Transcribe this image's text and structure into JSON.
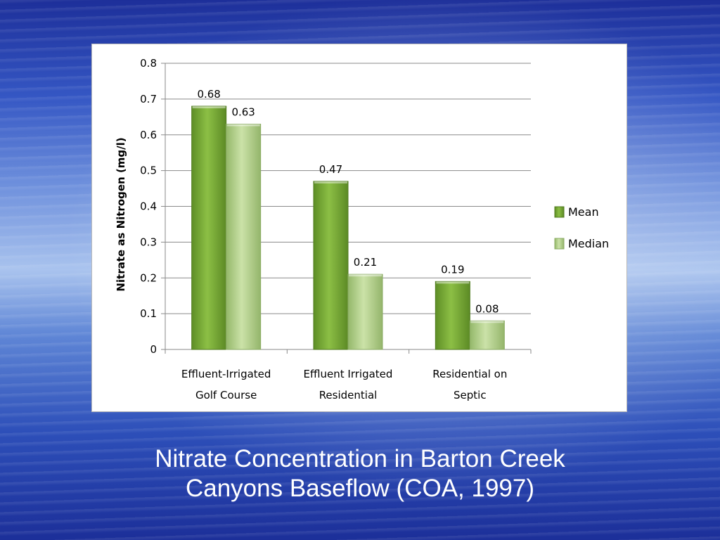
{
  "slide_title": {
    "line1": "Nitrate Concentration in Barton Creek",
    "line2": "Canyons Baseflow (COA, 1997)"
  },
  "chart_data": {
    "type": "bar",
    "categories": [
      [
        "Effluent-Irrigated",
        "Golf Course"
      ],
      [
        "Effluent Irrigated",
        "Residential"
      ],
      [
        "Residential  on",
        "Septic"
      ]
    ],
    "series": [
      {
        "name": "Mean",
        "values": [
          0.68,
          0.47,
          0.19
        ],
        "labels": [
          "0.68",
          "0.47",
          "0.19"
        ],
        "color": "#7fae3a"
      },
      {
        "name": "Median",
        "values": [
          0.63,
          0.21,
          0.08
        ],
        "labels": [
          "0.63",
          "0.21",
          "0.08"
        ],
        "color": "#b7d48c"
      }
    ],
    "ylabel": "Nitrate as Nitrogen (mg/l)",
    "xlabel": "",
    "ylim": [
      0,
      0.8
    ],
    "yticks": [
      "0",
      "0.1",
      "0.2",
      "0.3",
      "0.4",
      "0.5",
      "0.6",
      "0.7",
      "0.8"
    ],
    "grid": true,
    "legend_position": "right"
  }
}
